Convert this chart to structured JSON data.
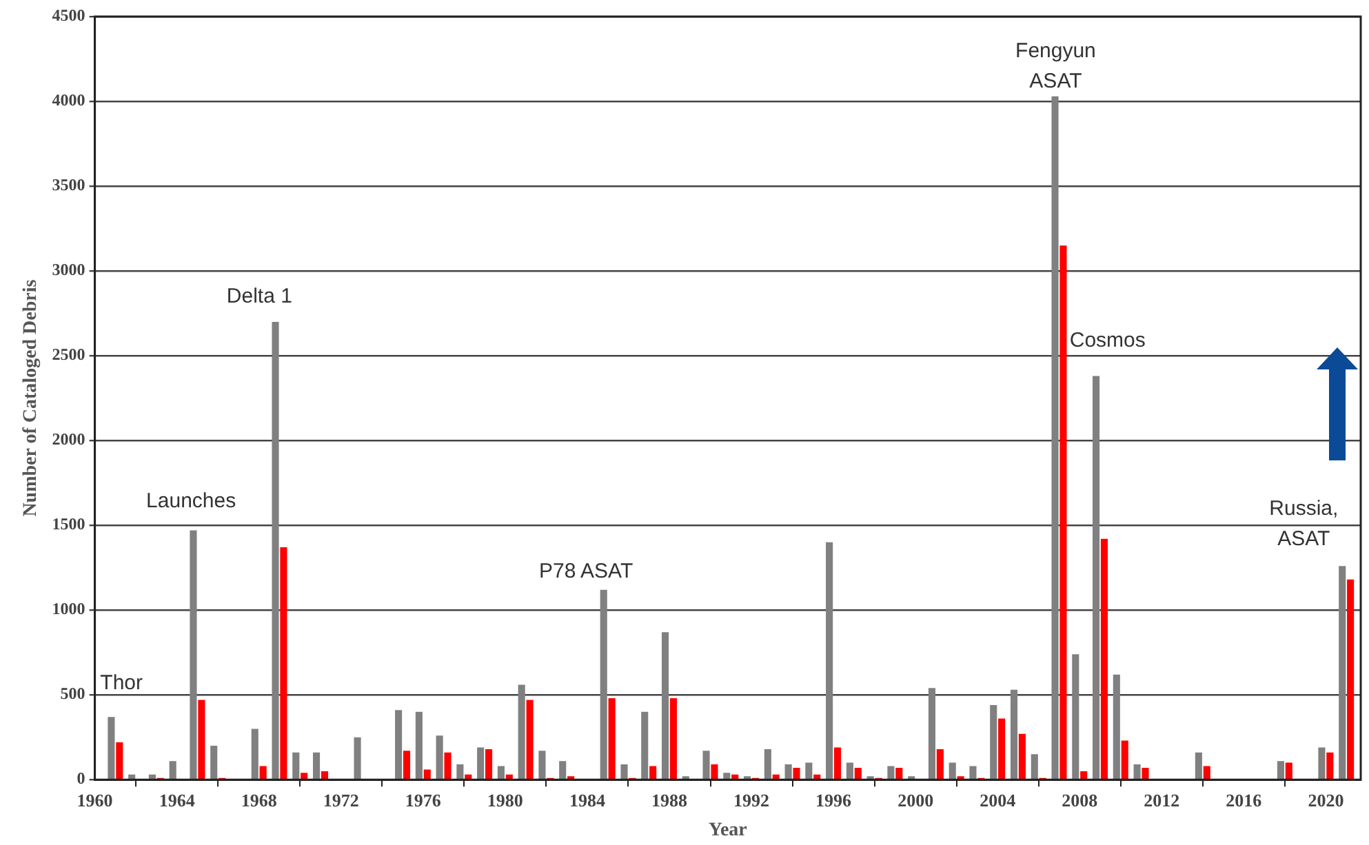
{
  "chart_data": {
    "type": "bar",
    "xlabel": "Year",
    "ylabel": "Number of Cataloged Debris",
    "x": [
      1961,
      1962,
      1963,
      1964,
      1965,
      1966,
      1967,
      1968,
      1969,
      1970,
      1971,
      1972,
      1973,
      1974,
      1975,
      1976,
      1977,
      1978,
      1979,
      1980,
      1981,
      1982,
      1983,
      1984,
      1985,
      1986,
      1987,
      1988,
      1989,
      1990,
      1991,
      1992,
      1993,
      1994,
      1995,
      1996,
      1997,
      1998,
      1999,
      2000,
      2001,
      2002,
      2003,
      2004,
      2005,
      2006,
      2007,
      2008,
      2009,
      2010,
      2011,
      2012,
      2013,
      2014,
      2015,
      2016,
      2017,
      2018,
      2019,
      2020,
      2021
    ],
    "series": [
      {
        "color": "#808080",
        "values": [
          370,
          30,
          30,
          110,
          1470,
          200,
          0,
          300,
          2700,
          160,
          160,
          0,
          250,
          0,
          410,
          400,
          260,
          90,
          190,
          80,
          560,
          170,
          110,
          0,
          1120,
          90,
          400,
          870,
          20,
          170,
          40,
          20,
          180,
          90,
          100,
          1400,
          100,
          20,
          80,
          20,
          540,
          100,
          80,
          440,
          530,
          150,
          4030,
          740,
          2380,
          620,
          90,
          0,
          0,
          160,
          0,
          0,
          0,
          110,
          0,
          190,
          1260
        ]
      },
      {
        "color": "#ff0000",
        "values": [
          220,
          0,
          10,
          0,
          470,
          10,
          0,
          80,
          1370,
          40,
          50,
          0,
          0,
          0,
          170,
          60,
          160,
          30,
          180,
          30,
          470,
          10,
          20,
          0,
          480,
          10,
          80,
          480,
          0,
          90,
          30,
          10,
          30,
          70,
          30,
          190,
          70,
          10,
          70,
          0,
          180,
          20,
          10,
          360,
          270,
          10,
          3150,
          50,
          1420,
          230,
          70,
          0,
          0,
          80,
          0,
          0,
          0,
          100,
          0,
          160,
          1180
        ]
      }
    ],
    "xlim": [
      1960,
      2021.7
    ],
    "xticks": [
      1960,
      1964,
      1968,
      1972,
      1976,
      1980,
      1984,
      1988,
      1992,
      1996,
      2000,
      2004,
      2008,
      2012,
      2016,
      2020
    ],
    "ylim": [
      0,
      4500
    ],
    "yticks": [
      0,
      500,
      1000,
      1500,
      2000,
      2500,
      3000,
      3500,
      4000,
      4500
    ],
    "grid": "y",
    "annotations": [
      "Thor",
      "Launches",
      "Delta 1",
      "P78 ASAT",
      "Fengyun\nASAT",
      "Cosmos",
      "Russia,\nASAT"
    ]
  }
}
